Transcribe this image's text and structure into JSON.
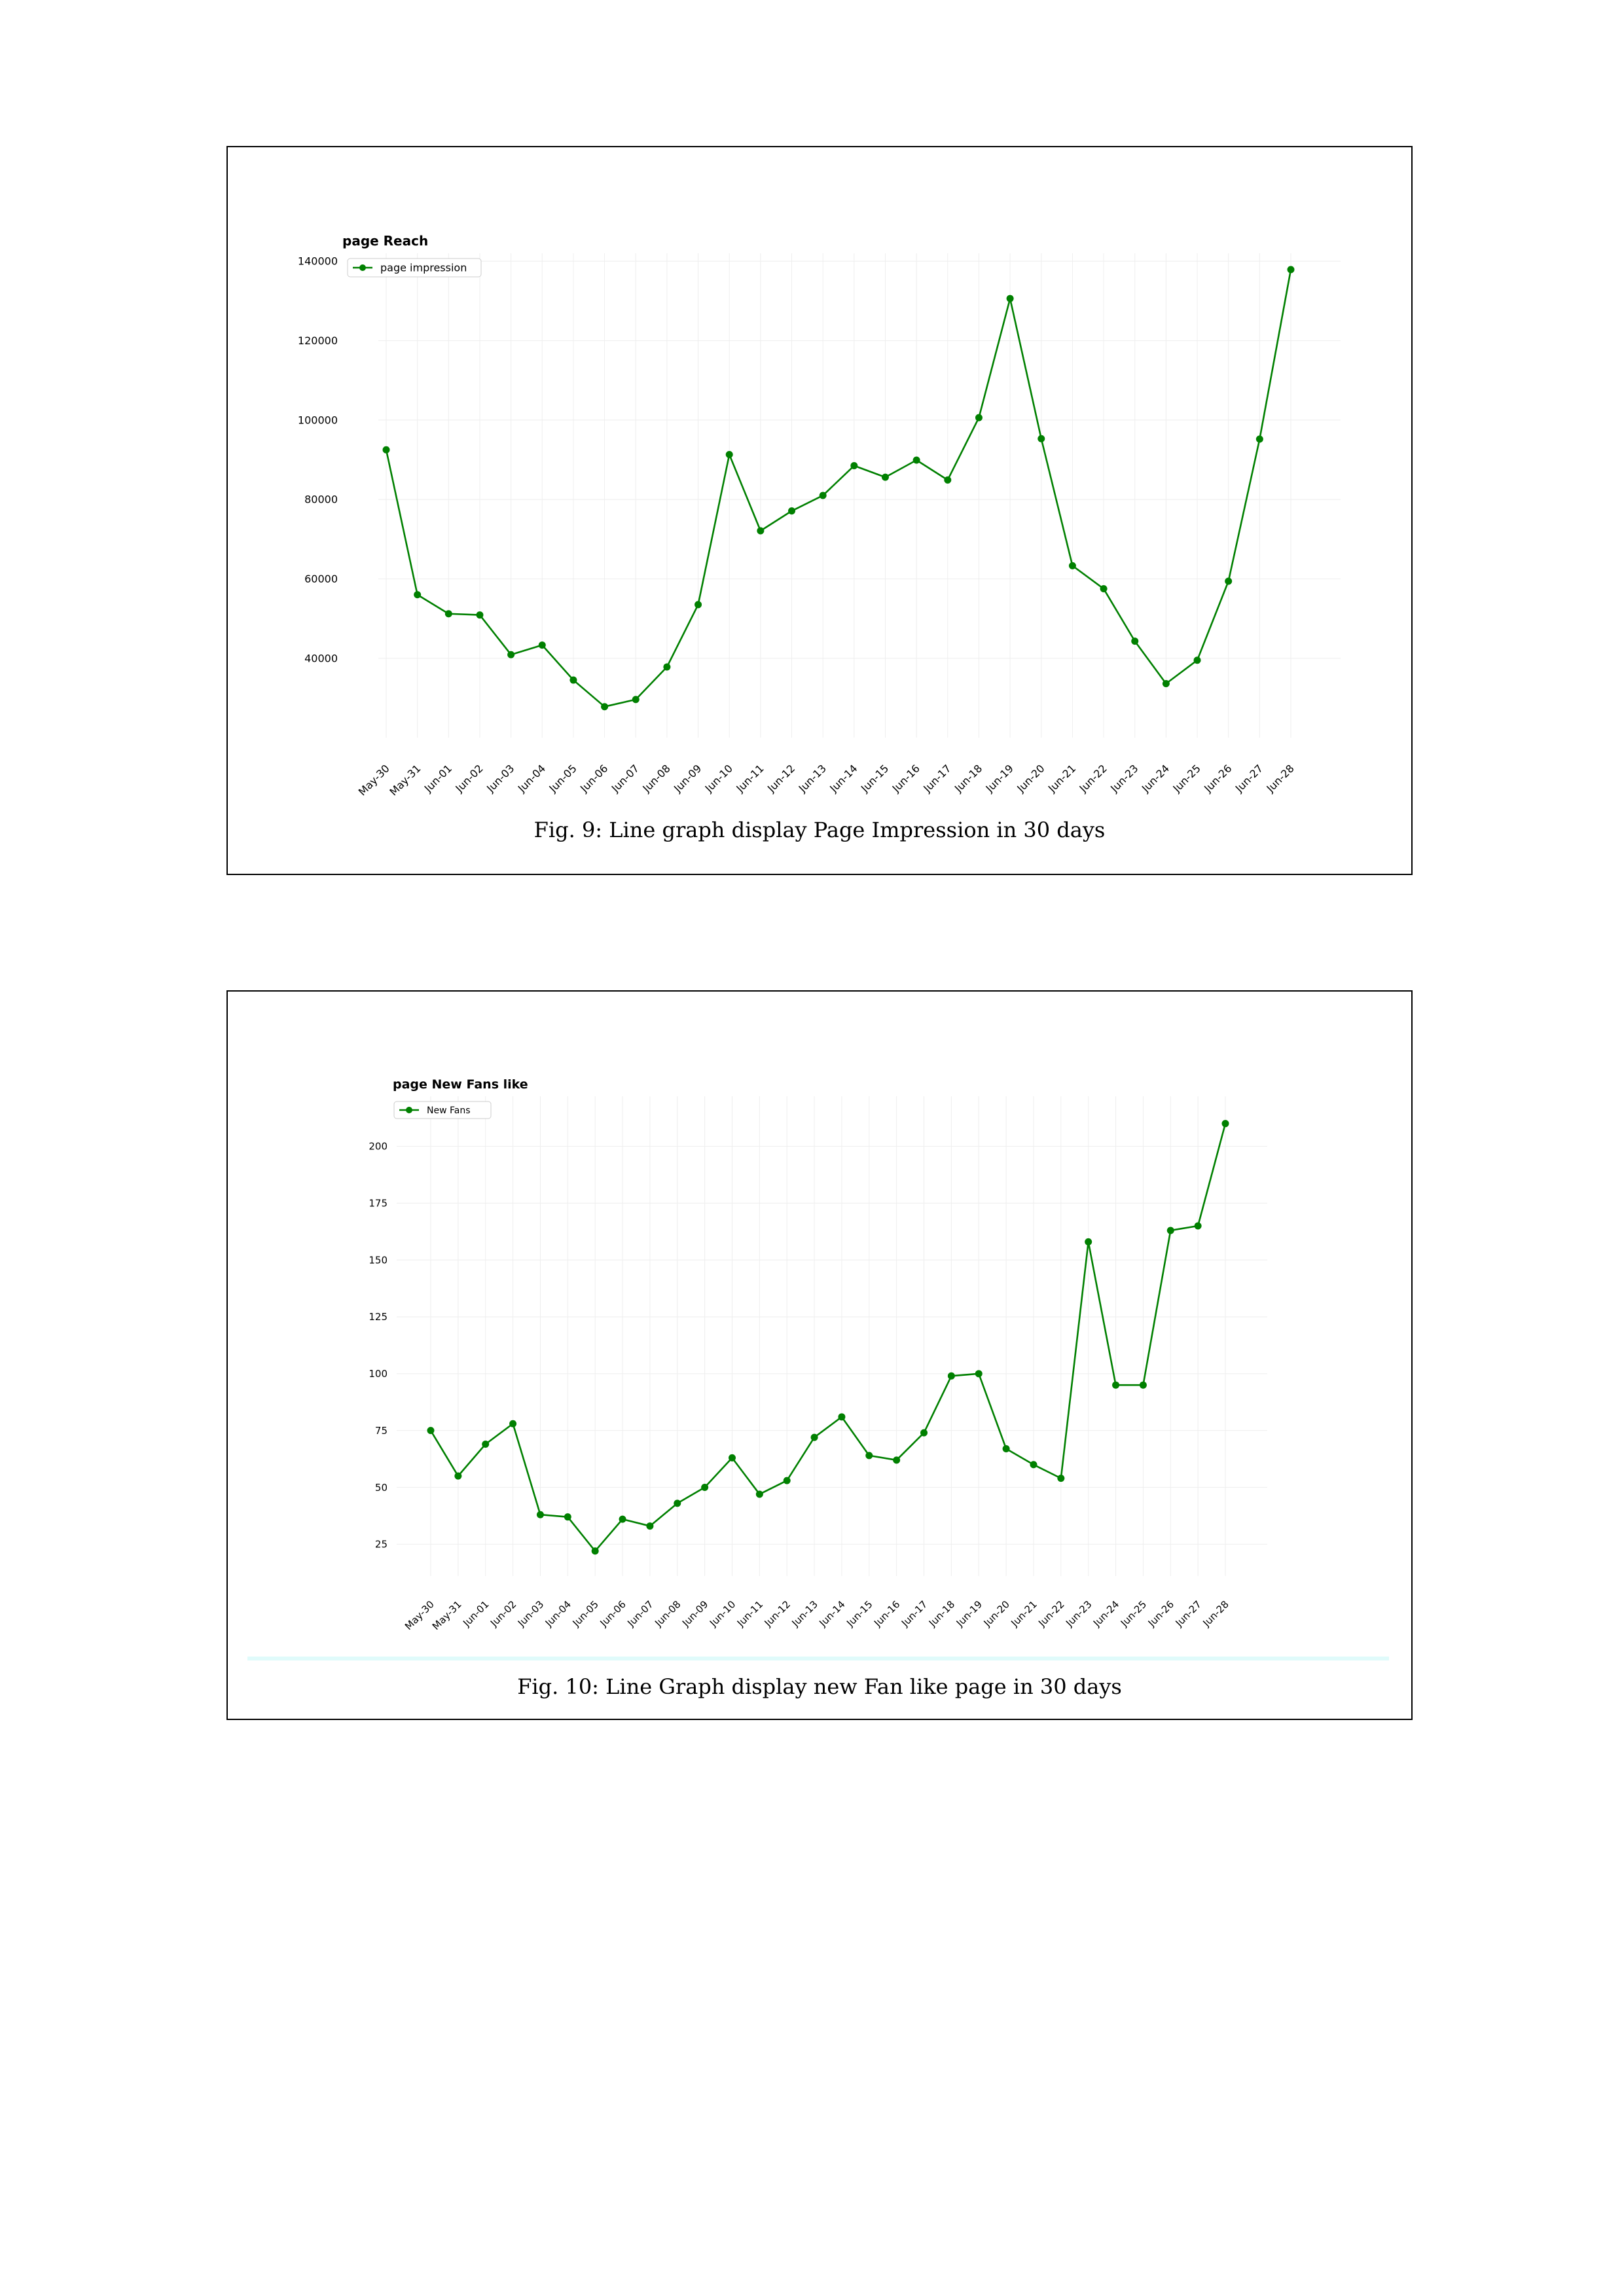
{
  "chart_data": [
    {
      "type": "line",
      "title": "page Reach",
      "xlabel": "",
      "ylabel": "",
      "categories": [
        "May-30",
        "May-31",
        "Jun-01",
        "Jun-02",
        "Jun-03",
        "Jun-04",
        "Jun-05",
        "Jun-06",
        "Jun-07",
        "Jun-08",
        "Jun-09",
        "Jun-10",
        "Jun-11",
        "Jun-12",
        "Jun-13",
        "Jun-14",
        "Jun-15",
        "Jun-16",
        "Jun-17",
        "Jun-18",
        "Jun-19",
        "Jun-20",
        "Jun-21",
        "Jun-22",
        "Jun-23",
        "Jun-24",
        "Jun-25",
        "Jun-26",
        "Jun-27",
        "Jun-28"
      ],
      "series": [
        {
          "name": "page impression",
          "color": "#008000",
          "values": [
            92500,
            56000,
            51200,
            50900,
            40900,
            43300,
            34500,
            27800,
            29600,
            37800,
            53500,
            91300,
            72100,
            77100,
            81000,
            88500,
            85600,
            89900,
            84900,
            100600,
            130600,
            95300,
            63300,
            57500,
            44300,
            33600,
            39500,
            59400,
            95200,
            137900
          ]
        }
      ],
      "yticks": [
        40000,
        60000,
        80000,
        100000,
        120000,
        140000
      ],
      "ylim": [
        20000,
        142000
      ],
      "grid": true,
      "legend": "top-left",
      "caption": "Fig. 9: Line graph display Page Impression in 30 days"
    },
    {
      "type": "line",
      "title": "page New Fans like",
      "xlabel": "",
      "ylabel": "",
      "categories": [
        "May-30",
        "May-31",
        "Jun-01",
        "Jun-02",
        "Jun-03",
        "Jun-04",
        "Jun-05",
        "Jun-06",
        "Jun-07",
        "Jun-08",
        "Jun-09",
        "Jun-10",
        "Jun-11",
        "Jun-12",
        "Jun-13",
        "Jun-14",
        "Jun-15",
        "Jun-16",
        "Jun-17",
        "Jun-18",
        "Jun-19",
        "Jun-20",
        "Jun-21",
        "Jun-22",
        "Jun-23",
        "Jun-24",
        "Jun-25",
        "Jun-26",
        "Jun-27",
        "Jun-28"
      ],
      "series": [
        {
          "name": "New Fans",
          "color": "#008000",
          "values": [
            75,
            55,
            69,
            78,
            38,
            37,
            22,
            36,
            33,
            43,
            50,
            63,
            47,
            53,
            72,
            81,
            64,
            62,
            74,
            99,
            100,
            67,
            60,
            54,
            158,
            95,
            95,
            163,
            165,
            210
          ]
        }
      ],
      "yticks": [
        25,
        50,
        75,
        100,
        125,
        150,
        175,
        200
      ],
      "ylim": [
        11,
        222
      ],
      "grid": true,
      "legend": "top-left",
      "caption": "Fig. 10: Line Graph display new Fan like page in 30 days"
    }
  ]
}
